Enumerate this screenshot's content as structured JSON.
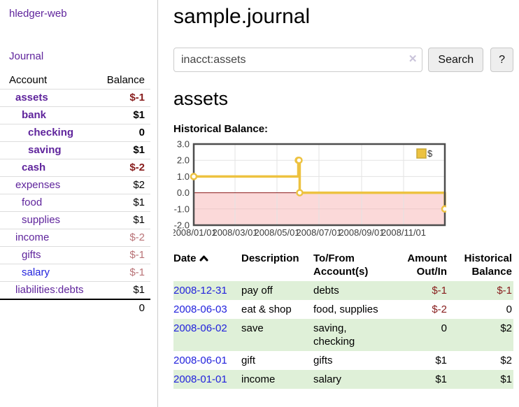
{
  "sidebar": {
    "brand": "hledger-web",
    "journal_link": "Journal",
    "accounts_table": {
      "header_account": "Account",
      "header_balance": "Balance",
      "rows": [
        {
          "name": "assets",
          "balance": "$-1",
          "indent": 1,
          "bold": true,
          "neg": "dark"
        },
        {
          "name": "bank",
          "balance": "$1",
          "indent": 2,
          "bold": true,
          "neg": ""
        },
        {
          "name": "checking",
          "balance": "0",
          "indent": 3,
          "bold": true,
          "neg": ""
        },
        {
          "name": "saving",
          "balance": "$1",
          "indent": 3,
          "bold": true,
          "neg": ""
        },
        {
          "name": "cash",
          "balance": "$-2",
          "indent": 2,
          "bold": true,
          "neg": "dark"
        },
        {
          "name": "expenses",
          "balance": "$2",
          "indent": 1,
          "bold": false,
          "neg": ""
        },
        {
          "name": "food",
          "balance": "$1",
          "indent": 2,
          "bold": false,
          "neg": ""
        },
        {
          "name": "supplies",
          "balance": "$1",
          "indent": 2,
          "bold": false,
          "neg": ""
        },
        {
          "name": "income",
          "balance": "$-2",
          "indent": 1,
          "bold": false,
          "neg": "rosy"
        },
        {
          "name": "gifts",
          "balance": "$-1",
          "indent": 2,
          "bold": false,
          "neg": "rosy"
        },
        {
          "name": "salary",
          "balance": "$-1",
          "indent": 2,
          "bold": false,
          "neg": "rosy",
          "link_color": "blue"
        },
        {
          "name": "liabilities:debts",
          "balance": "$1",
          "indent": 1,
          "bold": false,
          "neg": ""
        }
      ],
      "total": "0"
    }
  },
  "header": {
    "title": "sample.journal"
  },
  "search": {
    "value": "inacct:assets",
    "clear_icon": "✕",
    "search_button": "Search",
    "help_button": "?"
  },
  "account_page": {
    "heading": "assets",
    "chart_title": "Historical Balance:"
  },
  "chart_data": {
    "type": "line",
    "title": "Historical Balance:",
    "series": [
      {
        "name": "$",
        "color": "#edc240",
        "step": true,
        "points": [
          [
            "2008-01-01",
            1
          ],
          [
            "2008-06-01",
            2
          ],
          [
            "2008-06-02",
            2
          ],
          [
            "2008-06-03",
            0
          ],
          [
            "2008-12-31",
            -1
          ]
        ]
      }
    ],
    "xrange": [
      "2008-01-01",
      "2008-12-31"
    ],
    "ylim": [
      -2,
      3
    ],
    "yticks": [
      "3.0",
      "2.0",
      "1.0",
      "0.0",
      "-1.0",
      "-2.0"
    ],
    "ytick_values": [
      3,
      2,
      1,
      0,
      -1,
      -2
    ],
    "xticks": [
      "2008/01/01",
      "2008/03/01",
      "2008/05/01",
      "2008/07/01",
      "2008/09/01",
      "2008/11/01"
    ],
    "xtick_dates": [
      "2008-01-01",
      "2008-03-01",
      "2008-05-01",
      "2008-07-01",
      "2008-09-01",
      "2008-11-01"
    ],
    "legend": "$",
    "legend_position": "top-right",
    "grid": true,
    "negative_region_color": "#fbd9d9",
    "zero_line_color": "#8b1a1a",
    "border_color": "#4d4d4d"
  },
  "register": {
    "headers": {
      "date": "Date",
      "description": "Description",
      "account": "To/From Account(s)",
      "amount": "Amount Out/In",
      "balance": "Historical Balance"
    },
    "rows": [
      {
        "date": "2008-12-31",
        "description": "pay off",
        "accounts": "debts",
        "amount": "$-1",
        "amount_neg": true,
        "balance": "$-1",
        "balance_neg": true
      },
      {
        "date": "2008-06-03",
        "description": "eat & shop",
        "accounts": "food, supplies",
        "amount": "$-2",
        "amount_neg": true,
        "balance": "0",
        "balance_neg": false
      },
      {
        "date": "2008-06-02",
        "description": "save",
        "accounts": "saving, checking",
        "amount": "0",
        "amount_neg": false,
        "balance": "$2",
        "balance_neg": false
      },
      {
        "date": "2008-06-01",
        "description": "gift",
        "accounts": "gifts",
        "amount": "$1",
        "amount_neg": false,
        "balance": "$2",
        "balance_neg": false
      },
      {
        "date": "2008-01-01",
        "description": "income",
        "accounts": "salary",
        "amount": "$1",
        "amount_neg": false,
        "balance": "$1",
        "balance_neg": false
      }
    ]
  }
}
